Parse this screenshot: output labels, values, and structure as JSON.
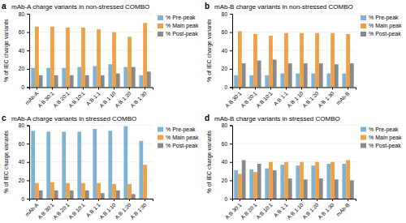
{
  "chart_data": [
    {
      "type": "bar",
      "title": "mAb-A charge variants in non-stressed COMBO",
      "annotations": [
        "a"
      ],
      "categories": [
        "mAb-A",
        "A:B 30:1",
        "A:B 20:1",
        "A:B 10:1",
        "A:B 1:1",
        "A:B 1:10",
        "A:B 1:20",
        "A:B 1:30"
      ],
      "series": [
        {
          "name": "% Pre-peak",
          "color": "#7fb3d3",
          "values": [
            21,
            21,
            21,
            22,
            23,
            25,
            22,
            13
          ]
        },
        {
          "name": "% Main peak",
          "color": "#f0a045",
          "values": [
            66,
            66,
            65,
            65,
            63,
            60,
            55,
            70
          ]
        },
        {
          "name": "% Post-peak",
          "color": "#8a8a8a",
          "values": [
            13,
            13,
            13,
            13,
            13,
            15,
            22,
            17
          ]
        }
      ],
      "ylabel": "% of IEC charge variants",
      "ylim": [
        0,
        80
      ],
      "yticks": [
        0,
        20,
        40,
        60,
        80
      ],
      "grid": true,
      "legend": "right"
    },
    {
      "type": "bar",
      "title": "mAb-B charge variants in non-stressed COMBO",
      "annotations": [
        "b"
      ],
      "categories": [
        "A:B 30:1",
        "A:B 20:1",
        "A:B 10:1",
        "A:B 1:1",
        "A:B 1:10",
        "A:B 1:20",
        "A:B 1:30",
        "mAb-B"
      ],
      "series": [
        {
          "name": "% Pre-peak",
          "color": "#7fb3d3",
          "values": [
            13,
            13,
            13,
            15,
            15,
            15,
            15,
            15
          ]
        },
        {
          "name": "% Main peak",
          "color": "#f0a045",
          "values": [
            61,
            58,
            56,
            59,
            59,
            59,
            59,
            58
          ]
        },
        {
          "name": "% Post-peak",
          "color": "#8a8a8a",
          "values": [
            26,
            29,
            30,
            26,
            26,
            26,
            25,
            26
          ]
        }
      ],
      "ylabel": "% of IEC charge variants",
      "ylim": [
        0,
        80
      ],
      "yticks": [
        0,
        20,
        40,
        60,
        80
      ],
      "grid": true,
      "legend": "right"
    },
    {
      "type": "bar",
      "title": "mAb-A charge variants in stressed COMBO",
      "annotations": [
        "c"
      ],
      "categories": [
        "mAb-A",
        "A:B 30:1",
        "A:B 20:1",
        "A:B 10:1",
        "A:B 1:1",
        "A:B 1:10",
        "A:B 1:20",
        "A:B 1:30"
      ],
      "series": [
        {
          "name": "% Pre-peak",
          "color": "#7fb3d3",
          "values": [
            74,
            73,
            73,
            73,
            76,
            74,
            79,
            63
          ]
        },
        {
          "name": "% Main peak",
          "color": "#f0a045",
          "values": [
            17,
            18,
            17,
            17,
            17,
            16,
            16,
            37
          ]
        },
        {
          "name": "% Post-peak",
          "color": "#8a8a8a",
          "values": [
            9,
            9,
            9,
            9,
            6,
            9,
            5,
            0
          ]
        }
      ],
      "ylabel": "% of IEC charge variants",
      "ylim": [
        0,
        80
      ],
      "yticks": [
        0,
        20,
        40,
        60,
        80
      ],
      "grid": true,
      "legend": "right"
    },
    {
      "type": "bar",
      "title": "mAb-B charge variants in stressed COMBO",
      "annotations": [
        "d"
      ],
      "categories": [
        "A:B 30:1",
        "A:B 20:1",
        "A:B 10:1",
        "A:B 1:1",
        "A:B 1:10",
        "A:B 1:20",
        "A:B 1:30",
        "mAb-B"
      ],
      "series": [
        {
          "name": "% Pre-peak",
          "color": "#7fb3d3",
          "values": [
            31,
            32,
            33,
            37,
            36,
            36,
            38,
            38
          ]
        },
        {
          "name": "% Main peak",
          "color": "#f0a045",
          "values": [
            27,
            29,
            40,
            40,
            40,
            40,
            40,
            42
          ]
        },
        {
          "name": "% Post-peak",
          "color": "#8a8a8a",
          "values": [
            42,
            38,
            31,
            22,
            21,
            22,
            21,
            20
          ]
        }
      ],
      "ylabel": "% of IEC charge variants",
      "ylim": [
        0,
        80
      ],
      "yticks": [
        0,
        20,
        40,
        60,
        80
      ],
      "grid": true,
      "legend": "right"
    }
  ]
}
